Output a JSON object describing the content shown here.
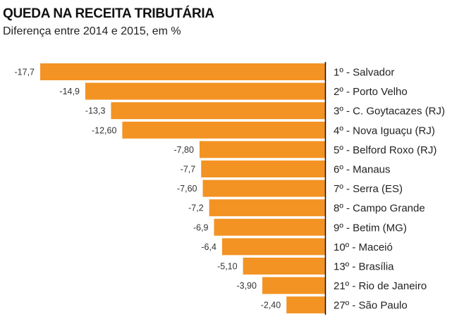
{
  "chart_data": {
    "type": "bar",
    "orientation": "horizontal",
    "title": "QUEDA NA RECEITA TRIBUTÁRIA",
    "subtitle": "Diferença entre 2014 e 2015, em %",
    "xlabel": "",
    "ylabel": "",
    "categories": [
      "1º - Salvador",
      "2º - Porto Velho",
      "3º - C. Goytacazes (RJ)",
      "4º - Nova Iguaçu (RJ)",
      "5º - Belford Roxo (RJ)",
      "6º - Manaus",
      "7º - Serra (ES)",
      "8º - Campo Grande",
      "9º - Betim (MG)",
      "10º - Maceió",
      "13º - Brasília",
      "21º - Rio de Janeiro",
      "27º - São Paulo"
    ],
    "values": [
      -17.7,
      -14.9,
      -13.3,
      -12.6,
      -7.8,
      -7.7,
      -7.6,
      -7.2,
      -6.9,
      -6.4,
      -5.1,
      -3.9,
      -2.4
    ],
    "value_labels": [
      "-17,7",
      "-14,9",
      "-13,3",
      "-12,60",
      "-7,80",
      "-7,7",
      "-7,60",
      "-7,2",
      "-6,9",
      "-6,4",
      "-5,10",
      "-3,90",
      "-2,40"
    ],
    "xlim": [
      -17.7,
      0
    ],
    "grid": false,
    "bar_color": "#F39323",
    "axis_color": "#111111"
  }
}
